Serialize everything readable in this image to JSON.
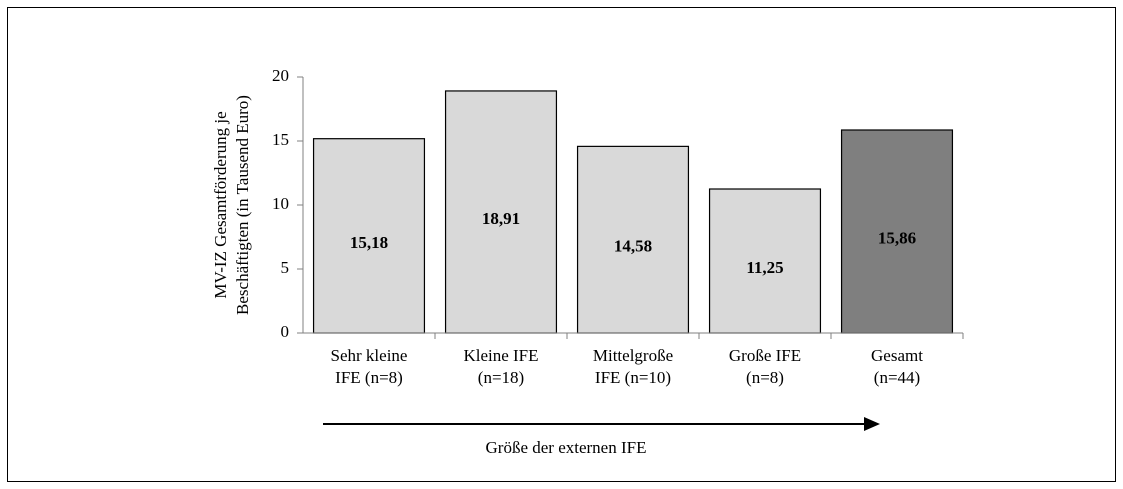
{
  "chart_data": {
    "type": "bar",
    "y_label": [
      "MV-IZ Gesamtförderung je",
      "Beschäftigten (in Tausend Euro)"
    ],
    "categories": [
      [
        "Sehr kleine",
        "IFE (n=8)"
      ],
      [
        "Kleine IFE",
        "(n=18)"
      ],
      [
        "Mittelgroße",
        "IFE (n=10)"
      ],
      [
        "Große IFE",
        "(n=8)"
      ],
      [
        "Gesamt",
        "(n=44)"
      ]
    ],
    "values": [
      15.18,
      18.91,
      14.58,
      11.25,
      15.86
    ],
    "value_labels": [
      "15,18",
      "18,91",
      "14,58",
      "11,25",
      "15,86"
    ],
    "colors": [
      "#d9d9d9",
      "#d9d9d9",
      "#d9d9d9",
      "#d9d9d9",
      "#7f7f7f"
    ],
    "label_colors": [
      "#000000",
      "#000000",
      "#000000",
      "#000000",
      "#ffffff"
    ],
    "ylim": [
      0,
      20
    ],
    "yticks": [
      0,
      5,
      10,
      15,
      20
    ],
    "annotation": "Größe der externen IFE"
  }
}
